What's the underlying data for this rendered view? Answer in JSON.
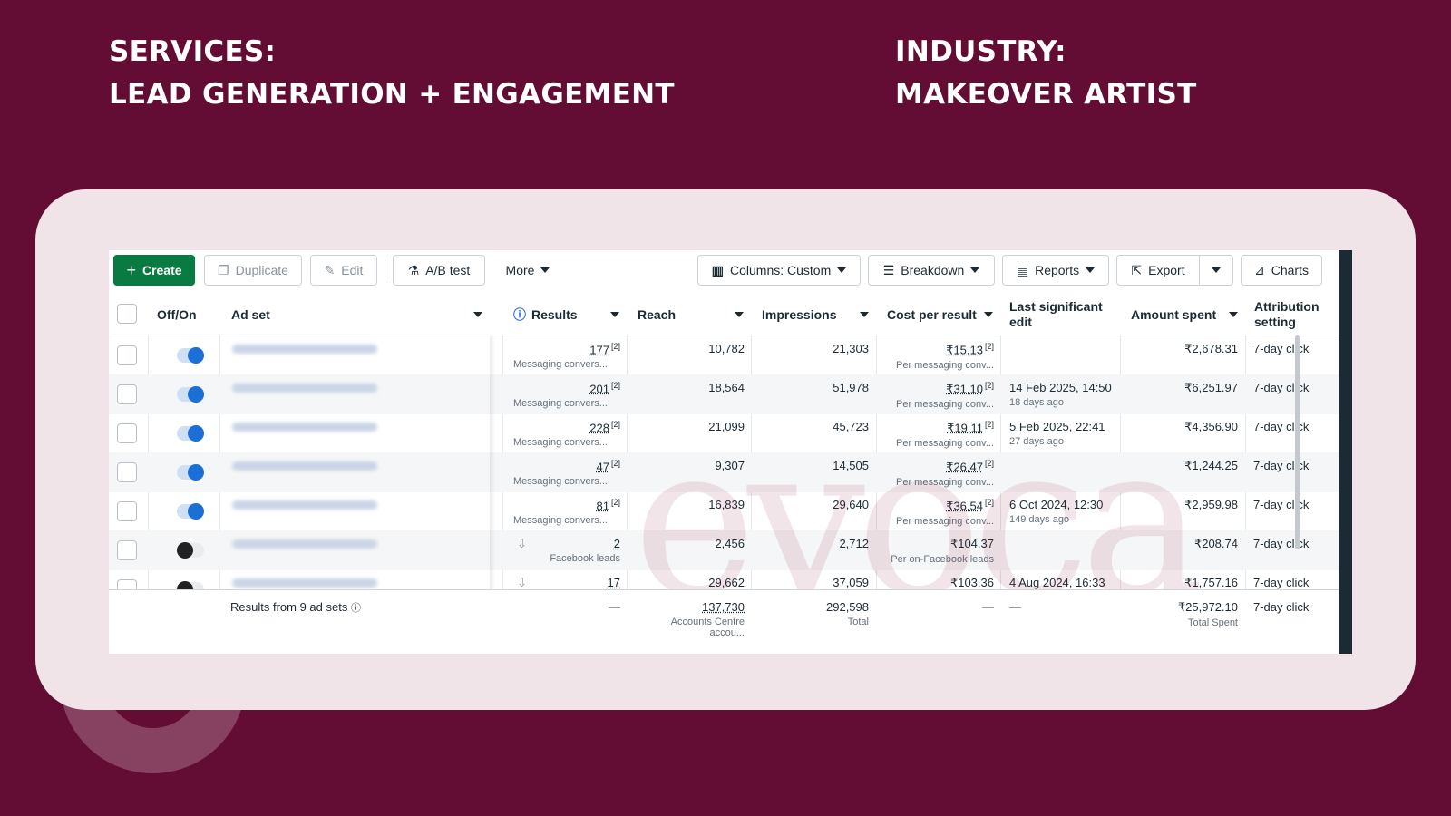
{
  "headline": {
    "left": {
      "line1": "SERVICES:",
      "line2": "LEAD GENERATION + ENGAGEMENT"
    },
    "right": {
      "line1": "INDUSTRY:",
      "line2": "MAKEOVER ARTIST"
    }
  },
  "toolbar": {
    "create": "Create",
    "duplicate": "Duplicate",
    "edit": "Edit",
    "ab_test": "A/B test",
    "more": "More",
    "columns": "Columns: Custom",
    "breakdown": "Breakdown",
    "reports": "Reports",
    "export": "Export",
    "charts": "Charts"
  },
  "columns": {
    "off_on": "Off/On",
    "ad_set": "Ad set",
    "results": "Results",
    "reach": "Reach",
    "impressions": "Impressions",
    "cost_per_result": "Cost per result",
    "last_edit_1": "Last significant",
    "last_edit_2": "edit",
    "amount_spent": "Amount spent",
    "attribution_1": "Attribution",
    "attribution_2": "setting"
  },
  "rows": [
    {
      "on": true,
      "results": "177",
      "results_sub": "Messaging convers...",
      "reach": "10,782",
      "impressions": "21,303",
      "cost": "₹15.13",
      "cost_sub": "Per messaging conv...",
      "edit": "",
      "edit_sub": "",
      "spent": "₹2,678.31",
      "attribution": "7-day click"
    },
    {
      "on": true,
      "results": "201",
      "results_sub": "Messaging convers...",
      "reach": "18,564",
      "impressions": "51,978",
      "cost": "₹31.10",
      "cost_sub": "Per messaging conv...",
      "edit": "14 Feb 2025, 14:50",
      "edit_sub": "18 days ago",
      "spent": "₹6,251.97",
      "attribution": "7-day click"
    },
    {
      "on": true,
      "results": "228",
      "results_sub": "Messaging convers...",
      "reach": "21,099",
      "impressions": "45,723",
      "cost": "₹19.11",
      "cost_sub": "Per messaging conv...",
      "edit": "5 Feb 2025, 22:41",
      "edit_sub": "27 days ago",
      "spent": "₹4,356.90",
      "attribution": "7-day click"
    },
    {
      "on": true,
      "results": "47",
      "results_sub": "Messaging convers...",
      "reach": "9,307",
      "impressions": "14,505",
      "cost": "₹26.47",
      "cost_sub": "Per messaging conv...",
      "edit": "",
      "edit_sub": "",
      "spent": "₹1,244.25",
      "attribution": "7-day click"
    },
    {
      "on": true,
      "results": "81",
      "results_sub": "Messaging convers...",
      "reach": "16,839",
      "impressions": "29,640",
      "cost": "₹36.54",
      "cost_sub": "Per messaging conv...",
      "edit": "6 Oct 2024, 12:30",
      "edit_sub": "149 days ago",
      "spent": "₹2,959.98",
      "attribution": "7-day click"
    },
    {
      "on": false,
      "results": "2",
      "results_sub": "Facebook leads",
      "reach": "2,456",
      "impressions": "2,712",
      "cost": "₹104.37",
      "cost_sub": "Per on-Facebook leads",
      "edit": "",
      "edit_sub": "",
      "spent": "₹208.74",
      "attribution": "7-day click"
    },
    {
      "on": false,
      "results": "17",
      "results_sub": "",
      "reach": "29,662",
      "impressions": "37,059",
      "cost": "₹103.36",
      "cost_sub": "",
      "edit": "4 Aug 2024, 16:33",
      "edit_sub": "",
      "spent": "₹1,757.16",
      "attribution": "7-day click"
    }
  ],
  "footer": {
    "label": "Results from 9 ad sets",
    "results": "—",
    "reach": "137,730",
    "reach_sub": "Accounts Centre accou...",
    "impressions": "292,598",
    "impressions_sub": "Total",
    "cost": "—",
    "edit": "—",
    "spent": "₹25,972.10",
    "spent_sub": "Total Spent",
    "attribution": "7-day click"
  },
  "watermark": "evoca",
  "colors": {
    "background": "#640d34",
    "card": "#f0e4e8",
    "create_green": "#0a7a43",
    "toggle_blue": "#1b6fd6"
  }
}
